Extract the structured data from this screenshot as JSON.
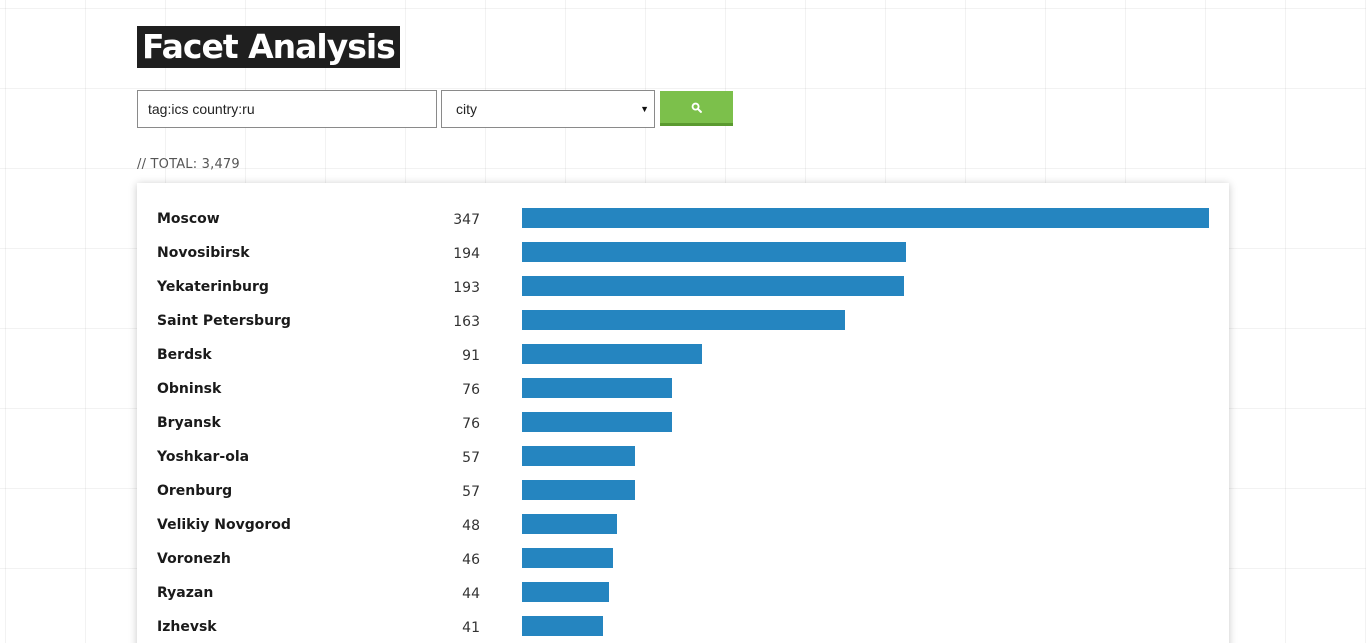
{
  "header": {
    "title": "Facet Analysis"
  },
  "search": {
    "query": "tag:ics country:ru",
    "facet": "city",
    "button_icon": "search-icon",
    "button_color": "#7cc04b"
  },
  "summary": {
    "total_label": "// TOTAL: 3,479"
  },
  "colors": {
    "bar": "#2585c0",
    "title_bg": "#1f1f1f"
  },
  "chart_data": {
    "type": "bar",
    "orientation": "horizontal",
    "categories": [
      "Moscow",
      "Novosibirsk",
      "Yekaterinburg",
      "Saint Petersburg",
      "Berdsk",
      "Obninsk",
      "Bryansk",
      "Yoshkar-ola",
      "Orenburg",
      "Velikiy Novgorod",
      "Voronezh",
      "Ryazan",
      "Izhevsk"
    ],
    "values": [
      347,
      194,
      193,
      163,
      91,
      76,
      76,
      57,
      57,
      48,
      46,
      44,
      41
    ],
    "max": 347,
    "grid": false
  }
}
